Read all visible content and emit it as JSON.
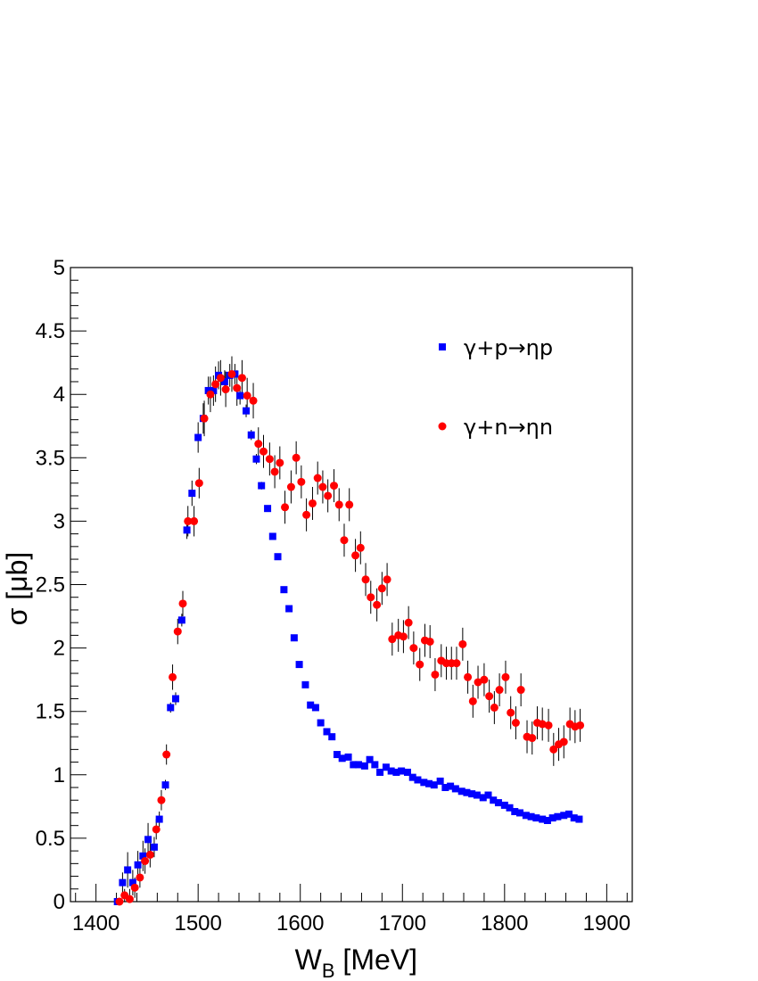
{
  "chart_data": {
    "type": "scatter",
    "title": "",
    "xlabel": {
      "main": "W",
      "sub": "B",
      "unit": " [MeV]"
    },
    "ylabel": "σ [μb]",
    "xlim": [
      1375,
      1925
    ],
    "ylim": [
      0,
      5
    ],
    "xticks": [
      1400,
      1500,
      1600,
      1700,
      1800,
      1900
    ],
    "yticks": [
      "0",
      "0.5",
      "1",
      "1.5",
      "2",
      "2.5",
      "3",
      "3.5",
      "4",
      "4.5",
      "5"
    ],
    "grid": false,
    "legend_position": "top-right",
    "series": [
      {
        "name": "γ+p→ηp",
        "color": "#0000ff",
        "marker": "square",
        "x": [
          1421,
          1426,
          1431,
          1436,
          1441,
          1446,
          1451,
          1457,
          1462,
          1468,
          1473,
          1478,
          1484,
          1489,
          1494,
          1500,
          1505,
          1510,
          1515,
          1520,
          1526,
          1531,
          1536,
          1541,
          1547,
          1552,
          1557,
          1562,
          1568,
          1573,
          1578,
          1584,
          1589,
          1594,
          1599,
          1605,
          1610,
          1615,
          1620,
          1626,
          1631,
          1636,
          1641,
          1647,
          1652,
          1657,
          1663,
          1668,
          1673,
          1678,
          1684,
          1689,
          1694,
          1699,
          1705,
          1710,
          1715,
          1721,
          1726,
          1731,
          1737,
          1742,
          1747,
          1752,
          1758,
          1763,
          1768,
          1773,
          1779,
          1784,
          1789,
          1794,
          1800,
          1805,
          1810,
          1815,
          1821,
          1826,
          1831,
          1837,
          1842,
          1847,
          1852,
          1858,
          1863,
          1868,
          1873
        ],
        "y": [
          0.0,
          0.15,
          0.25,
          0.15,
          0.29,
          0.36,
          0.49,
          0.43,
          0.65,
          0.92,
          1.53,
          1.6,
          2.22,
          2.93,
          3.22,
          3.66,
          3.81,
          4.03,
          4.03,
          4.15,
          4.1,
          4.15,
          4.16,
          3.99,
          3.87,
          3.68,
          3.49,
          3.28,
          3.1,
          2.88,
          2.72,
          2.46,
          2.31,
          2.08,
          1.87,
          1.71,
          1.55,
          1.53,
          1.41,
          1.34,
          1.3,
          1.16,
          1.13,
          1.14,
          1.08,
          1.08,
          1.07,
          1.12,
          1.08,
          1.02,
          1.06,
          1.03,
          1.02,
          1.03,
          1.02,
          0.98,
          0.96,
          0.94,
          0.93,
          0.92,
          0.95,
          0.9,
          0.91,
          0.89,
          0.87,
          0.86,
          0.85,
          0.84,
          0.82,
          0.84,
          0.8,
          0.78,
          0.76,
          0.74,
          0.71,
          0.7,
          0.68,
          0.67,
          0.66,
          0.65,
          0.64,
          0.66,
          0.67,
          0.68,
          0.69,
          0.66,
          0.65
        ],
        "err": [
          0.0,
          0.08,
          0.14,
          0.1,
          0.11,
          0.12,
          0.13,
          0.08,
          0.06,
          0.04,
          0.04,
          0.05,
          0.05,
          0.07,
          0.1,
          0.12,
          0.12,
          0.11,
          0.12,
          0.11,
          0.09,
          0.09,
          0.08,
          0.07,
          0.05,
          0.04,
          0.04,
          0.03,
          0.02,
          0.02,
          0.02,
          0.02,
          0.02,
          0.02,
          0.02,
          0.02,
          0.02,
          0.02,
          0.02,
          0.02,
          0.02,
          0.02,
          0.02,
          0.02,
          0.02,
          0.02,
          0.02,
          0.02,
          0.02,
          0.02,
          0.02,
          0.02,
          0.02,
          0.02,
          0.02,
          0.02,
          0.02,
          0.02,
          0.02,
          0.02,
          0.02,
          0.02,
          0.02,
          0.02,
          0.02,
          0.02,
          0.02,
          0.02,
          0.02,
          0.02,
          0.02,
          0.02,
          0.02,
          0.02,
          0.02,
          0.02,
          0.02,
          0.02,
          0.02,
          0.02,
          0.02,
          0.02,
          0.02,
          0.02,
          0.02,
          0.02,
          0.02
        ]
      },
      {
        "name": "γ+n→ηn",
        "color": "#ff0000",
        "marker": "circle",
        "x": [
          1423,
          1428,
          1433,
          1438,
          1443,
          1448,
          1453,
          1459,
          1464,
          1469,
          1475,
          1480,
          1485,
          1490,
          1496,
          1501,
          1506,
          1512,
          1517,
          1522,
          1527,
          1533,
          1538,
          1543,
          1548,
          1554,
          1559,
          1564,
          1570,
          1575,
          1580,
          1585,
          1591,
          1596,
          1601,
          1606,
          1612,
          1617,
          1622,
          1627,
          1633,
          1638,
          1643,
          1648,
          1654,
          1659,
          1664,
          1669,
          1675,
          1680,
          1685,
          1690,
          1696,
          1701,
          1706,
          1711,
          1717,
          1722,
          1727,
          1732,
          1738,
          1743,
          1748,
          1753,
          1759,
          1764,
          1769,
          1774,
          1780,
          1785,
          1790,
          1795,
          1801,
          1806,
          1811,
          1816,
          1822,
          1827,
          1832,
          1837,
          1843,
          1848,
          1853,
          1858,
          1864,
          1869,
          1874
        ],
        "y": [
          0.0,
          0.05,
          0.02,
          0.11,
          0.19,
          0.32,
          0.37,
          0.57,
          0.8,
          1.16,
          1.77,
          2.13,
          2.35,
          3.0,
          3.0,
          3.3,
          3.81,
          4.0,
          4.08,
          4.13,
          4.04,
          4.16,
          4.05,
          4.13,
          3.99,
          3.95,
          3.61,
          3.55,
          3.49,
          3.39,
          3.46,
          3.11,
          3.27,
          3.5,
          3.31,
          3.05,
          3.14,
          3.34,
          3.27,
          3.2,
          3.28,
          3.13,
          2.85,
          3.13,
          2.73,
          2.79,
          2.54,
          2.4,
          2.34,
          2.47,
          2.54,
          2.07,
          2.1,
          2.09,
          2.2,
          2.0,
          1.87,
          2.06,
          2.05,
          1.79,
          1.9,
          1.88,
          1.88,
          1.88,
          2.03,
          1.77,
          1.58,
          1.73,
          1.75,
          1.62,
          1.53,
          1.67,
          1.77,
          1.49,
          1.41,
          1.67,
          1.3,
          1.29,
          1.41,
          1.4,
          1.39,
          1.2,
          1.24,
          1.26,
          1.4,
          1.38,
          1.39
        ],
        "err": [
          0.02,
          0.05,
          0.08,
          0.08,
          0.08,
          0.1,
          0.1,
          0.08,
          0.08,
          0.08,
          0.1,
          0.1,
          0.1,
          0.12,
          0.12,
          0.12,
          0.14,
          0.14,
          0.14,
          0.14,
          0.14,
          0.14,
          0.14,
          0.14,
          0.14,
          0.14,
          0.13,
          0.13,
          0.13,
          0.13,
          0.13,
          0.13,
          0.13,
          0.13,
          0.13,
          0.13,
          0.13,
          0.13,
          0.13,
          0.13,
          0.13,
          0.13,
          0.13,
          0.13,
          0.13,
          0.13,
          0.13,
          0.13,
          0.13,
          0.13,
          0.13,
          0.13,
          0.13,
          0.13,
          0.13,
          0.13,
          0.13,
          0.13,
          0.13,
          0.13,
          0.13,
          0.13,
          0.13,
          0.13,
          0.13,
          0.13,
          0.13,
          0.13,
          0.13,
          0.13,
          0.13,
          0.13,
          0.13,
          0.13,
          0.13,
          0.13,
          0.13,
          0.13,
          0.13,
          0.13,
          0.13,
          0.13,
          0.13,
          0.13,
          0.13,
          0.13,
          0.13
        ]
      }
    ]
  }
}
